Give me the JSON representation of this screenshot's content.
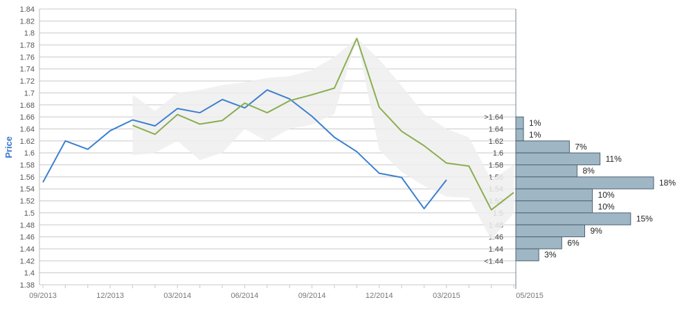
{
  "chart_data": {
    "type": "line",
    "ylabel": "Price",
    "ylim": [
      1.38,
      1.84
    ],
    "ytick_step": 0.02,
    "ytick_labels": [
      "1.38",
      "1.4",
      "1.42",
      "1.44",
      "1.46",
      "1.48",
      "1.5",
      "1.52",
      "1.54",
      "1.56",
      "1.58",
      "1.6",
      "1.62",
      "1.64",
      "1.66",
      "1.68",
      "1.7",
      "1.72",
      "1.74",
      "1.76",
      "1.78",
      "1.8",
      "1.82",
      "1.84"
    ],
    "x_tick_labels": [
      "09/2013",
      "12/2013",
      "03/2014",
      "06/2014",
      "09/2014",
      "12/2014",
      "03/2015",
      "05/2015"
    ],
    "x_tick_months": [
      0,
      3,
      6,
      9,
      12,
      15,
      18,
      21
    ],
    "x_month_range": [
      0,
      21
    ],
    "series": [
      {
        "color": "#3a7fd0",
        "points": [
          [
            0,
            1.551
          ],
          [
            1,
            1.62
          ],
          [
            2,
            1.606
          ],
          [
            3,
            1.637
          ],
          [
            4,
            1.655
          ],
          [
            5,
            1.645
          ],
          [
            6,
            1.674
          ],
          [
            7,
            1.667
          ],
          [
            8,
            1.689
          ],
          [
            9,
            1.675
          ],
          [
            10,
            1.705
          ],
          [
            11,
            1.69
          ],
          [
            12,
            1.661
          ],
          [
            13,
            1.626
          ],
          [
            14,
            1.602
          ],
          [
            15,
            1.566
          ],
          [
            16,
            1.559
          ],
          [
            17,
            1.507
          ],
          [
            18,
            1.555
          ]
        ]
      },
      {
        "color": "#8aad4f",
        "points": [
          [
            4,
            1.646
          ],
          [
            5,
            1.631
          ],
          [
            6,
            1.664
          ],
          [
            7,
            1.648
          ],
          [
            8,
            1.654
          ],
          [
            9,
            1.683
          ],
          [
            10,
            1.667
          ],
          [
            11,
            1.687
          ],
          [
            12,
            1.697
          ],
          [
            13,
            1.708
          ],
          [
            14,
            1.791
          ],
          [
            15,
            1.676
          ],
          [
            16,
            1.636
          ],
          [
            17,
            1.612
          ],
          [
            18,
            1.583
          ],
          [
            19,
            1.578
          ],
          [
            20,
            1.505
          ],
          [
            21,
            1.534
          ]
        ]
      }
    ],
    "band": {
      "color": "#eeeeee",
      "upper": [
        [
          4,
          1.697
        ],
        [
          5,
          1.67
        ],
        [
          6,
          1.7
        ],
        [
          7,
          1.705
        ],
        [
          8,
          1.713
        ],
        [
          9,
          1.718
        ],
        [
          10,
          1.725
        ],
        [
          11,
          1.728
        ],
        [
          12,
          1.738
        ],
        [
          13,
          1.76
        ],
        [
          14,
          1.791
        ],
        [
          15,
          1.756
        ],
        [
          16,
          1.712
        ],
        [
          17,
          1.665
        ],
        [
          18,
          1.64
        ],
        [
          19,
          1.626
        ],
        [
          20,
          1.555
        ],
        [
          21,
          1.58
        ]
      ],
      "lower": [
        [
          4,
          1.596
        ],
        [
          5,
          1.6
        ],
        [
          6,
          1.62
        ],
        [
          7,
          1.588
        ],
        [
          8,
          1.6
        ],
        [
          9,
          1.64
        ],
        [
          10,
          1.619
        ],
        [
          11,
          1.64
        ],
        [
          12,
          1.647
        ],
        [
          13,
          1.665
        ],
        [
          14,
          1.791
        ],
        [
          15,
          1.605
        ],
        [
          16,
          1.568
        ],
        [
          17,
          1.545
        ],
        [
          18,
          1.527
        ],
        [
          19,
          1.525
        ],
        [
          20,
          1.455
        ],
        [
          21,
          1.5
        ]
      ]
    },
    "histogram": {
      "bar_color": "#9fb6c4",
      "bar_border": "#4d6272",
      "max_pct": 18,
      "bins": [
        {
          "label": ">1.64",
          "pct_label": "1%",
          "pct": 1,
          "y_top": 1.66,
          "y_bottom": 1.64
        },
        {
          "label": "1.64",
          "pct_label": "1%",
          "pct": 1,
          "y_top": 1.64,
          "y_bottom": 1.62
        },
        {
          "label": "1.62",
          "pct_label": "7%",
          "pct": 7,
          "y_top": 1.62,
          "y_bottom": 1.6
        },
        {
          "label": "1.6",
          "pct_label": "11%",
          "pct": 11,
          "y_top": 1.6,
          "y_bottom": 1.58
        },
        {
          "label": "1.58",
          "pct_label": "8%",
          "pct": 8,
          "y_top": 1.58,
          "y_bottom": 1.56
        },
        {
          "label": "1.56",
          "pct_label": "18%",
          "pct": 18,
          "y_top": 1.56,
          "y_bottom": 1.54
        },
        {
          "label": "1.54",
          "pct_label": "10%",
          "pct": 10,
          "y_top": 1.54,
          "y_bottom": 1.52
        },
        {
          "label": "1.52",
          "pct_label": "10%",
          "pct": 10,
          "y_top": 1.52,
          "y_bottom": 1.5
        },
        {
          "label": "1.5",
          "pct_label": "15%",
          "pct": 15,
          "y_top": 1.5,
          "y_bottom": 1.48
        },
        {
          "label": "1.48",
          "pct_label": "9%",
          "pct": 9,
          "y_top": 1.48,
          "y_bottom": 1.46
        },
        {
          "label": "1.46",
          "pct_label": "6%",
          "pct": 6,
          "y_top": 1.46,
          "y_bottom": 1.44
        },
        {
          "label": "1.44",
          "pct_label": "3%",
          "pct": 3,
          "y_top": 1.44,
          "y_bottom": 1.42
        },
        {
          "label": "<1.44",
          "pct_label": "",
          "pct": 0,
          "y_top": 1.42,
          "y_bottom": 1.42
        }
      ]
    }
  }
}
